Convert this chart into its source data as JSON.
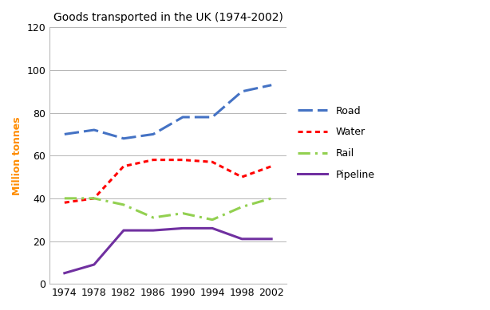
{
  "title": "Goods transported in the UK (1974-2002)",
  "ylabel": "Million tonnes",
  "years": [
    1974,
    1978,
    1982,
    1986,
    1990,
    1994,
    1998,
    2002
  ],
  "road": [
    70,
    72,
    68,
    70,
    78,
    78,
    90,
    93
  ],
  "water": [
    38,
    40,
    55,
    58,
    58,
    57,
    50,
    55
  ],
  "rail": [
    40,
    40,
    37,
    31,
    33,
    30,
    36,
    40
  ],
  "pipeline": [
    5,
    9,
    25,
    25,
    26,
    26,
    21,
    21
  ],
  "road_color": "#4472C4",
  "water_color": "#FF0000",
  "rail_color": "#92D050",
  "pipeline_color": "#7030A0",
  "ylim": [
    0,
    120
  ],
  "yticks": [
    0,
    20,
    40,
    60,
    80,
    100,
    120
  ],
  "xticks": [
    1974,
    1978,
    1982,
    1986,
    1990,
    1994,
    1998,
    2002
  ],
  "grid_color": "#AAAAAA",
  "bg_color": "#FFFFFF",
  "ylabel_color": "#FF8C00"
}
